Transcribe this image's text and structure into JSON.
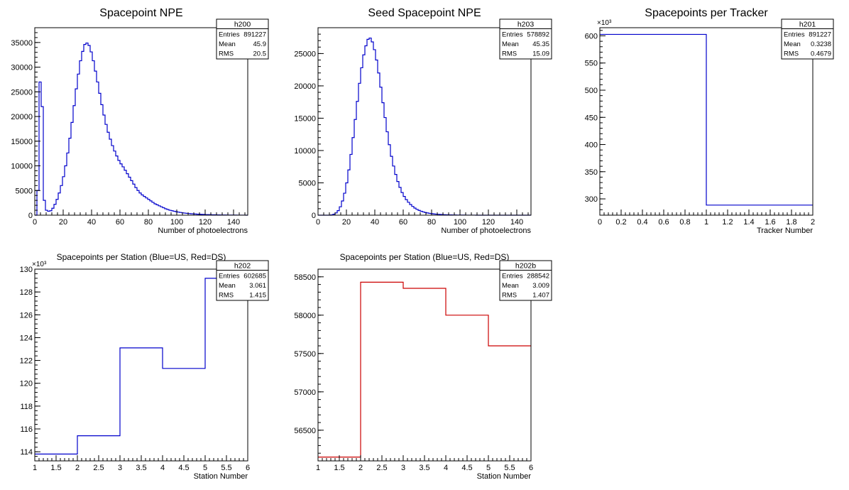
{
  "chart_data": [
    {
      "type": "bar",
      "histogram_style": "step",
      "title": "Spacepoint NPE",
      "xlabel": "Number of photoelectrons",
      "ylabel": "",
      "xlim": [
        0,
        150
      ],
      "ylim": [
        0,
        38000
      ],
      "x_ticks": [
        0,
        20,
        40,
        60,
        80,
        100,
        120,
        140
      ],
      "x_tick_labels": [
        "0",
        "20",
        "40",
        "60",
        "80",
        "100",
        "120",
        "140"
      ],
      "y_ticks": [
        0,
        5000,
        10000,
        15000,
        20000,
        25000,
        30000,
        35000
      ],
      "y_tick_labels": [
        "0",
        "5000",
        "10000",
        "15000",
        "20000",
        "25000",
        "30000",
        "35000"
      ],
      "y_exponent": "",
      "line_color": "#0000cc",
      "bin_edges_start": 0,
      "bin_width": 1.5,
      "values": [
        0,
        5000,
        27000,
        22000,
        3000,
        1000,
        800,
        900,
        1400,
        2200,
        3200,
        4500,
        6000,
        7800,
        10000,
        12600,
        15600,
        18800,
        22200,
        25600,
        28600,
        31300,
        33200,
        34600,
        34900,
        34400,
        33100,
        31300,
        29200,
        27000,
        24700,
        22400,
        20300,
        18400,
        16800,
        15400,
        14100,
        13000,
        12000,
        11100,
        10400,
        9800,
        9100,
        8400,
        7700,
        7000,
        6300,
        5600,
        5000,
        4500,
        4100,
        3800,
        3500,
        3200,
        2900,
        2600,
        2300,
        2100,
        1900,
        1700,
        1500,
        1300,
        1150,
        1000,
        900,
        800,
        700,
        620,
        550,
        480,
        420,
        370,
        330,
        290,
        260,
        230,
        200,
        180,
        160,
        140,
        120,
        105,
        90,
        80,
        70,
        60,
        50,
        45,
        40,
        35,
        30,
        26,
        22,
        18,
        15,
        12,
        10,
        8,
        6,
        5
      ],
      "stats": {
        "name": "h200",
        "rows": [
          {
            "label": "Entries",
            "value": "891227"
          },
          {
            "label": "Mean",
            "value": "45.9"
          },
          {
            "label": "RMS",
            "value": "20.5"
          }
        ]
      }
    },
    {
      "type": "bar",
      "histogram_style": "step",
      "title": "Seed Spacepoint NPE",
      "xlabel": "Number of photoelectrons",
      "ylabel": "",
      "xlim": [
        0,
        150
      ],
      "ylim": [
        0,
        29000
      ],
      "x_ticks": [
        0,
        20,
        40,
        60,
        80,
        100,
        120,
        140
      ],
      "x_tick_labels": [
        "0",
        "20",
        "40",
        "60",
        "80",
        "100",
        "120",
        "140"
      ],
      "y_ticks": [
        0,
        5000,
        10000,
        15000,
        20000,
        25000
      ],
      "y_tick_labels": [
        "0",
        "5000",
        "10000",
        "15000",
        "20000",
        "25000"
      ],
      "y_exponent": "",
      "line_color": "#0000cc",
      "bin_edges_start": 0,
      "bin_width": 1.5,
      "values": [
        0,
        0,
        0,
        0,
        0,
        0,
        50,
        150,
        350,
        700,
        1300,
        2200,
        3400,
        5000,
        7000,
        9400,
        12000,
        14800,
        17600,
        20400,
        22800,
        24800,
        26200,
        27200,
        27400,
        26800,
        25600,
        24000,
        22000,
        19800,
        17400,
        15100,
        12900,
        10900,
        9100,
        7600,
        6300,
        5200,
        4300,
        3500,
        2900,
        2400,
        2000,
        1650,
        1350,
        1100,
        900,
        740,
        610,
        500,
        410,
        340,
        280,
        230,
        190,
        160,
        130,
        110,
        90,
        75,
        60,
        50,
        40,
        33,
        27,
        22,
        18,
        14,
        11,
        9,
        7,
        6,
        5,
        4,
        3,
        2,
        2,
        1,
        1,
        1,
        0,
        0,
        0,
        0,
        0,
        0,
        0,
        0,
        0,
        0,
        0,
        0,
        0,
        0,
        0,
        0,
        0,
        0,
        0,
        0
      ],
      "stats": {
        "name": "h203",
        "rows": [
          {
            "label": "Entries",
            "value": "578892"
          },
          {
            "label": "Mean",
            "value": "45.35"
          },
          {
            "label": "RMS",
            "value": "15.09"
          }
        ]
      }
    },
    {
      "type": "bar",
      "histogram_style": "step",
      "title": "Spacepoints per Tracker",
      "xlabel": "Tracker Number",
      "ylabel": "",
      "xlim": [
        0,
        2
      ],
      "ylim": [
        270,
        615
      ],
      "x_ticks": [
        0,
        0.2,
        0.4,
        0.6,
        0.8,
        1,
        1.2,
        1.4,
        1.6,
        1.8,
        2
      ],
      "x_tick_labels": [
        "0",
        "0.2",
        "0.4",
        "0.6",
        "0.8",
        "1",
        "1.2",
        "1.4",
        "1.6",
        "1.8",
        "2"
      ],
      "y_ticks": [
        300,
        350,
        400,
        450,
        500,
        550,
        600
      ],
      "y_tick_labels": [
        "300",
        "350",
        "400",
        "450",
        "500",
        "550",
        "600"
      ],
      "y_exponent": "×10³",
      "line_color": "#0000cc",
      "bin_edges_start": 0,
      "bin_width": 1,
      "values": [
        602.685,
        288.542
      ],
      "stats": {
        "name": "h201",
        "rows": [
          {
            "label": "Entries",
            "value": "891227"
          },
          {
            "label": "Mean",
            "value": "0.3238"
          },
          {
            "label": "RMS",
            "value": "0.4679"
          }
        ]
      }
    },
    {
      "type": "bar",
      "histogram_style": "step",
      "title": "Spacepoints per Station (Blue=US, Red=DS)",
      "xlabel": "Station Number",
      "ylabel": "",
      "xlim": [
        1,
        6
      ],
      "ylim": [
        113.2,
        130
      ],
      "x_ticks": [
        1,
        1.5,
        2,
        2.5,
        3,
        3.5,
        4,
        4.5,
        5,
        5.5,
        6
      ],
      "x_tick_labels": [
        "1",
        "1.5",
        "2",
        "2.5",
        "3",
        "3.5",
        "4",
        "4.5",
        "5",
        "5.5",
        "6"
      ],
      "y_ticks": [
        114,
        116,
        118,
        120,
        122,
        124,
        126,
        128,
        130
      ],
      "y_tick_labels": [
        "114",
        "116",
        "118",
        "120",
        "122",
        "124",
        "126",
        "128",
        "130"
      ],
      "y_exponent": "×10³",
      "line_color": "#0000cc",
      "bin_edges_start": 1,
      "bin_width": 1,
      "values": [
        113.8,
        115.4,
        123.1,
        121.3,
        129.2
      ],
      "stats": {
        "name": "h202",
        "rows": [
          {
            "label": "Entries",
            "value": "602685"
          },
          {
            "label": "Mean",
            "value": "3.061"
          },
          {
            "label": "RMS",
            "value": "1.415"
          }
        ]
      }
    },
    {
      "type": "bar",
      "histogram_style": "step",
      "title": "Spacepoints per Station (Blue=US, Red=DS)",
      "xlabel": "Station Number",
      "ylabel": "",
      "xlim": [
        1,
        6
      ],
      "ylim": [
        56100,
        58600
      ],
      "x_ticks": [
        1,
        1.5,
        2,
        2.5,
        3,
        3.5,
        4,
        4.5,
        5,
        5.5,
        6
      ],
      "x_tick_labels": [
        "1",
        "1.5",
        "2",
        "2.5",
        "3",
        "3.5",
        "4",
        "4.5",
        "5",
        "5.5",
        "6"
      ],
      "y_ticks": [
        56500,
        57000,
        57500,
        58000,
        58500
      ],
      "y_tick_labels": [
        "56500",
        "57000",
        "57500",
        "58000",
        "58500"
      ],
      "y_exponent": "",
      "line_color": "#cc0000",
      "bin_edges_start": 1,
      "bin_width": 1,
      "values": [
        56150,
        58430,
        58350,
        58000,
        57600
      ],
      "stats": {
        "name": "h202b",
        "rows": [
          {
            "label": "Entries",
            "value": "288542"
          },
          {
            "label": "Mean",
            "value": "3.009"
          },
          {
            "label": "RMS",
            "value": "1.407"
          }
        ]
      }
    }
  ]
}
